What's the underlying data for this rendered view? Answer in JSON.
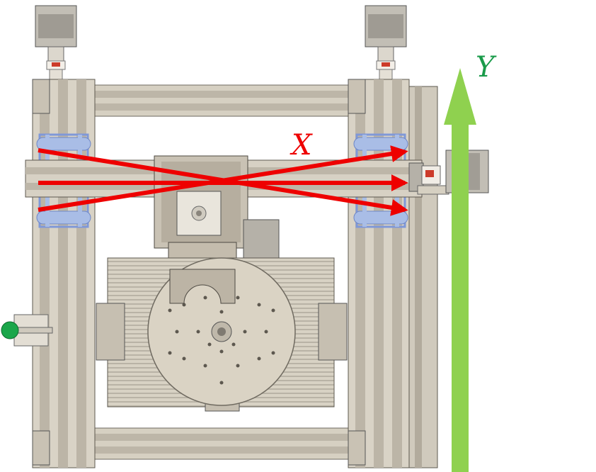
{
  "diagram": {
    "labels": {
      "x_axis": "X",
      "y_axis": "Y"
    },
    "colors": {
      "x_axis": "#ee0000",
      "y_axis": "#1a9b4a",
      "y_arrow": "#8fd14f",
      "frame": "#d6d0c2",
      "frame_dark": "#8a8478",
      "plate": "#d9d1c2",
      "bearing": "#a9bde6",
      "motor": "#b5b1a8",
      "knob": "#1aa64a"
    }
  }
}
